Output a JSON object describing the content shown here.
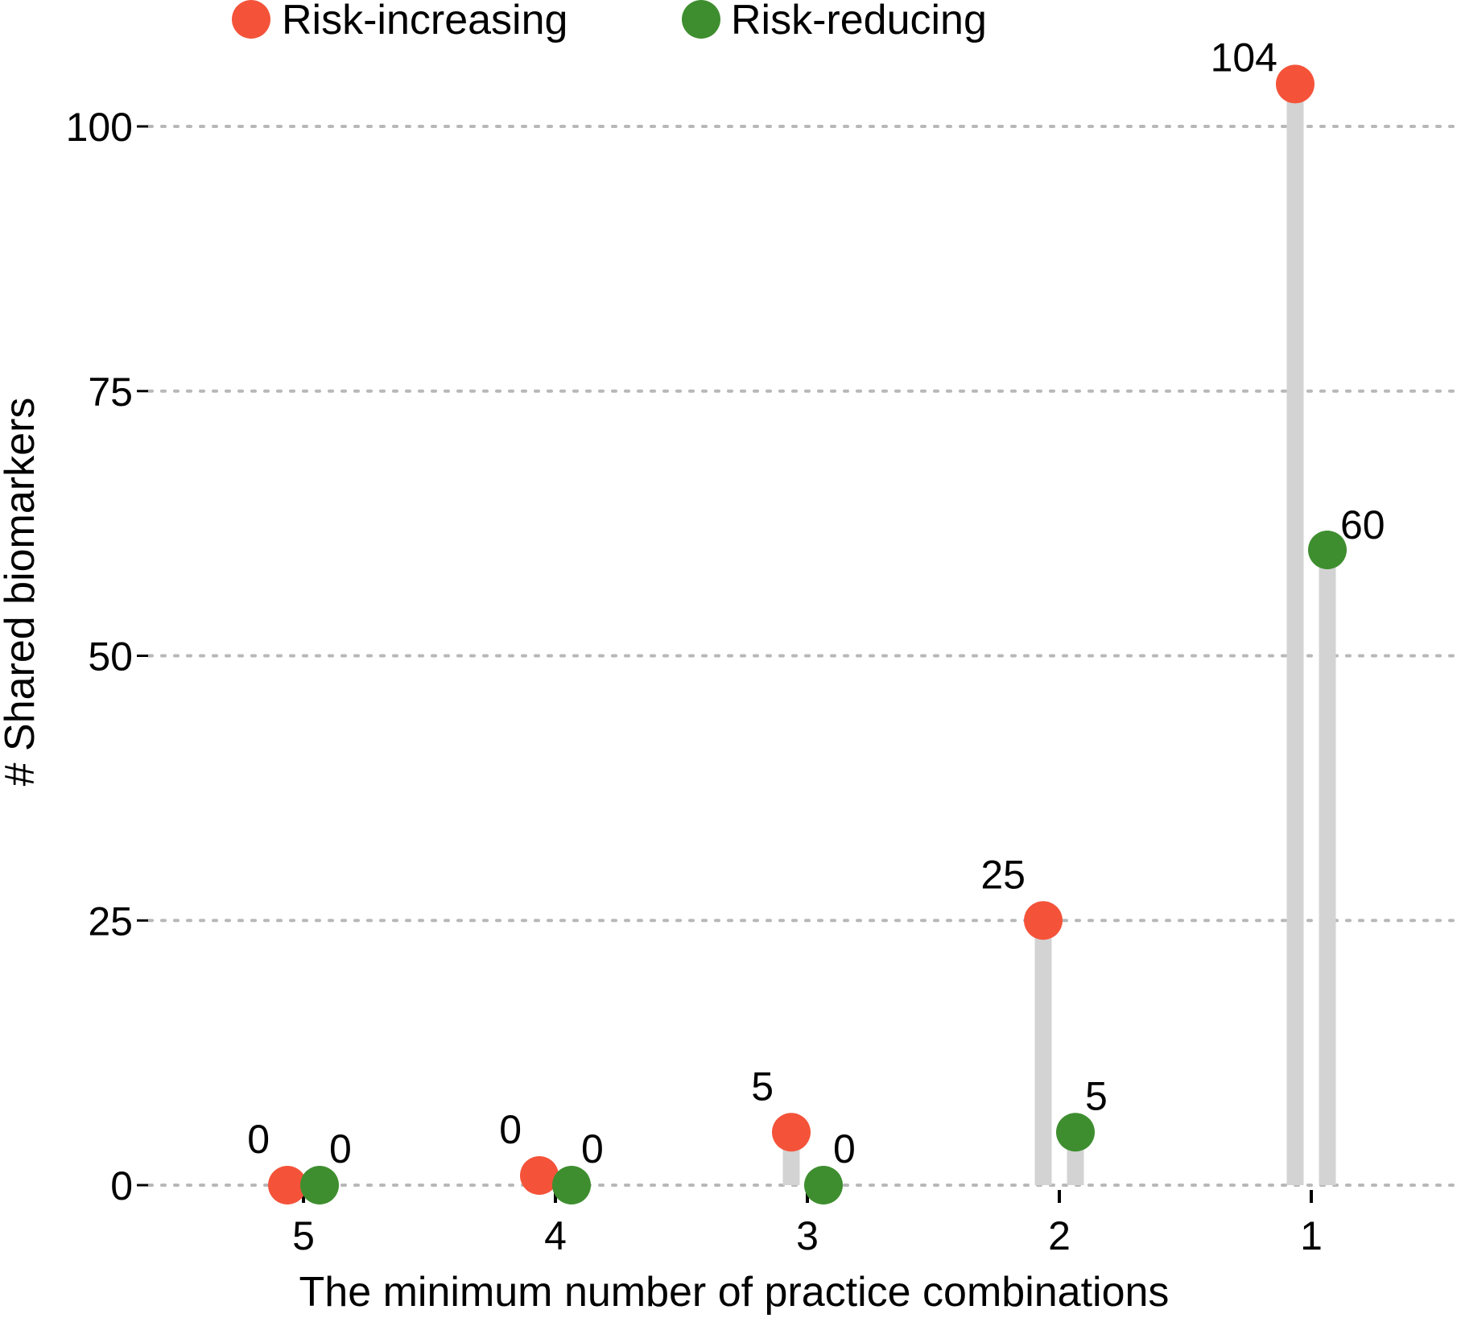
{
  "chart_data": {
    "type": "lollipop",
    "title": "",
    "xlabel": "The minimum number of practice combinations",
    "ylabel": "# Shared biomarkers",
    "categories": [
      "5",
      "4",
      "3",
      "2",
      "1"
    ],
    "ylim": [
      0,
      104
    ],
    "yticks": [
      0,
      25,
      50,
      75,
      100
    ],
    "grid": "horizontal dotted",
    "legend_position": "top",
    "series": [
      {
        "name": "Risk-increasing",
        "color": "#F4533A",
        "values": [
          0,
          0,
          5,
          25,
          104
        ],
        "labels": [
          "0",
          "0",
          "5",
          "25",
          "104"
        ]
      },
      {
        "name": "Risk-reducing",
        "color": "#3E8E2F",
        "values": [
          0,
          0,
          0,
          5,
          60
        ],
        "labels": [
          "0",
          "0",
          "0",
          "5",
          "60"
        ]
      }
    ],
    "stem_color": "#D3D3D3"
  }
}
